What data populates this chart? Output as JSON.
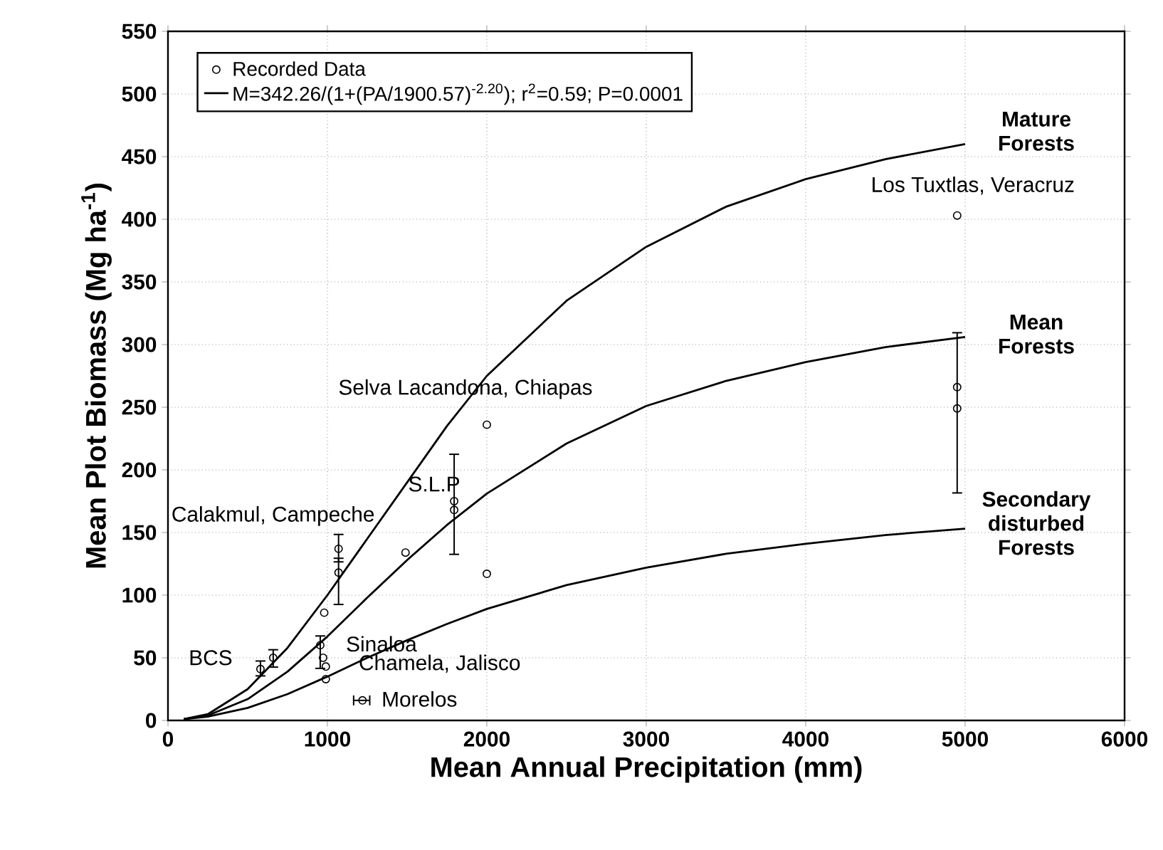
{
  "chart_data": {
    "type": "line",
    "xlabel": "Mean Annual Precipitation (mm)",
    "ylabel": "Mean Plot Biomass (Mg ha$^{-1}$)",
    "xlim": [
      0,
      6000
    ],
    "xticks": [
      0,
      1000,
      2000,
      3000,
      4000,
      5000,
      6000
    ],
    "ylim": [
      0,
      550
    ],
    "yticks": [
      0,
      50,
      100,
      150,
      200,
      250,
      300,
      350,
      400,
      450,
      500,
      550
    ],
    "grid": true,
    "legend": "top left",
    "series": [
      {
        "name": "Recorded Data",
        "type": "scatter",
        "marker": "circle",
        "color": "#000000",
        "x": [
          580,
          660,
          955,
          973,
          990,
          990,
          980,
          1070,
          1070,
          1220,
          1490,
          1795,
          1795,
          2000,
          2000,
          4950,
          4950,
          4950
        ],
        "values": [
          41,
          50,
          60,
          50,
          43,
          33,
          86,
          137,
          118,
          16,
          134,
          175,
          168,
          236,
          117,
          403,
          266,
          249
        ],
        "errors": [
          [
            35,
            48
          ],
          [
            42,
            57
          ],
          [
            41,
            68
          ],
          null,
          null,
          null,
          null,
          [
            126,
            149
          ],
          [
            92,
            130
          ],
          null,
          null,
          [
            132,
            213
          ],
          null,
          null,
          null,
          null,
          [
            181,
            310
          ],
          null
        ],
        "xerrors": [
          null,
          null,
          null,
          null,
          null,
          null,
          null,
          null,
          null,
          [
            1160,
            1270
          ],
          null,
          null,
          null,
          null,
          null,
          null,
          null,
          null
        ]
      },
      {
        "name": "M=342.26/(1+(PA/1900.57)$^{-2.20}$); r$^{2}$=0.59; P=0.0001",
        "marker": "none",
        "line_style": "solid",
        "color": "#000000",
        "x": [
          100,
          250,
          500,
          750,
          1000,
          1250,
          1500,
          1750,
          2000,
          2500,
          3000,
          3500,
          4000,
          4500,
          5000
        ],
        "values": [
          1,
          4,
          17,
          39,
          67,
          98,
          128,
          156,
          181,
          221,
          251,
          271,
          286,
          298,
          306
        ]
      },
      {
        "marker": "none",
        "line_style": "solid",
        "color": "#000000",
        "x": [
          100,
          250,
          500,
          750,
          1000,
          1250,
          1500,
          1750,
          2000,
          2500,
          3000,
          3500,
          4000,
          4500,
          5000
        ],
        "values": [
          1,
          5,
          25,
          58,
          100,
          145,
          190,
          235,
          275,
          335,
          378,
          410,
          432,
          448,
          460
        ]
      },
      {
        "marker": "none",
        "line_style": "solid",
        "color": "#000000",
        "x": [
          100,
          250,
          500,
          750,
          1000,
          1250,
          1500,
          1750,
          2000,
          2500,
          3000,
          3500,
          4000,
          4500,
          5000
        ],
        "values": [
          1,
          3,
          10,
          21,
          35,
          50,
          64,
          77,
          89,
          108,
          122,
          133,
          141,
          148,
          153
        ]
      }
    ],
    "annotations": [
      {
        "text": "**Mature Forests**",
        "x": 5000,
        "y": 460
      },
      {
        "text": "**Mean Forests**",
        "x": 5000,
        "y": 306
      },
      {
        "text": "**Secondary disturbed Forests**",
        "x": 5000,
        "y": 153
      },
      {
        "text": "Los Tuxtlas, Veracruz",
        "x": 4950,
        "y": 403
      },
      {
        "text": "Selva Lacandona, Chiapas",
        "x": 2000,
        "y": 236
      },
      {
        "text": "S.L.P",
        "x": 1795,
        "y": 175
      },
      {
        "text": "Calakmul, Campeche",
        "x": 1070,
        "y": 137
      },
      {
        "text": "BCS",
        "x": 580,
        "y": 41
      },
      {
        "text": "Sinaloa",
        "x": 955,
        "y": 60
      },
      {
        "text": "Chamela, Jalisco",
        "x": 990,
        "y": 43
      },
      {
        "text": "Morelos",
        "x": 1220,
        "y": 16
      }
    ]
  }
}
